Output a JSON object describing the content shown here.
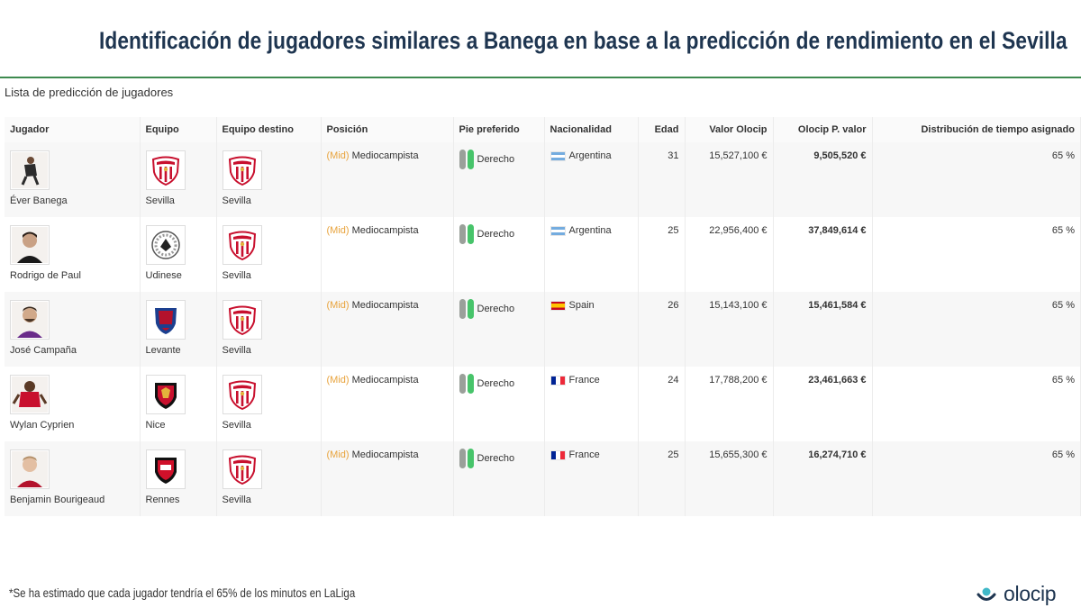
{
  "title": "Identificación de jugadores similares a Banega en base a la predicción de rendimiento en el Sevilla",
  "subtitle": "Lista de predicción de jugadores",
  "colors": {
    "accent_green": "#2f9a3e",
    "title_navy": "#1e3550",
    "position_orange": "#e8a33c"
  },
  "table": {
    "headers": {
      "player": "Jugador",
      "team": "Equipo",
      "destination": "Equipo destino",
      "position": "Posición",
      "foot": "Pie preferido",
      "nationality": "Nacionalidad",
      "age": "Edad",
      "value": "Valor Olocip",
      "predicted": "Olocip P. valor",
      "time": "Distribución de tiempo asignado"
    },
    "rows": [
      {
        "player": "Éver Banega",
        "team": "Sevilla",
        "destination": "Sevilla",
        "position_tag": "(Mid)",
        "position": "Mediocampista",
        "foot": "Derecho",
        "nationality": "Argentina",
        "age": "31",
        "value": "15,527,100 €",
        "predicted": "9,505,520 €",
        "time": "65 %"
      },
      {
        "player": "Rodrigo de Paul",
        "team": "Udinese",
        "destination": "Sevilla",
        "position_tag": "(Mid)",
        "position": "Mediocampista",
        "foot": "Derecho",
        "nationality": "Argentina",
        "age": "25",
        "value": "22,956,400 €",
        "predicted": "37,849,614 €",
        "time": "65 %"
      },
      {
        "player": "José Campaña",
        "team": "Levante",
        "destination": "Sevilla",
        "position_tag": "(Mid)",
        "position": "Mediocampista",
        "foot": "Derecho",
        "nationality": "Spain",
        "age": "26",
        "value": "15,143,100 €",
        "predicted": "15,461,584 €",
        "time": "65 %"
      },
      {
        "player": "Wylan Cyprien",
        "team": "Nice",
        "destination": "Sevilla",
        "position_tag": "(Mid)",
        "position": "Mediocampista",
        "foot": "Derecho",
        "nationality": "France",
        "age": "24",
        "value": "17,788,200 €",
        "predicted": "23,461,663 €",
        "time": "65 %"
      },
      {
        "player": "Benjamin Bourigeaud",
        "team": "Rennes",
        "destination": "Sevilla",
        "position_tag": "(Mid)",
        "position": "Mediocampista",
        "foot": "Derecho",
        "nationality": "France",
        "age": "25",
        "value": "15,655,300 €",
        "predicted": "16,274,710 €",
        "time": "65 %"
      }
    ]
  },
  "footnote": "*Se ha estimado que cada jugador tendría el 65% de los minutos en LaLiga",
  "logo": {
    "text": "olocip"
  }
}
